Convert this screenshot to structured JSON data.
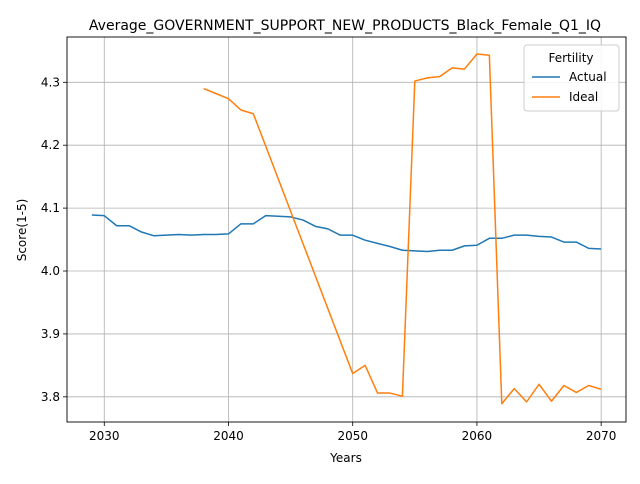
{
  "chart_data": {
    "type": "line",
    "title": "Average_GOVERNMENT_SUPPORT_NEW_PRODUCTS_Black_Female_Q1_IQ",
    "xlabel": "Years",
    "ylabel": "Score(1-5)",
    "xlim": [
      2027,
      2072
    ],
    "ylim": [
      3.76,
      4.372
    ],
    "x_ticks": [
      2030,
      2040,
      2050,
      2060,
      2070
    ],
    "y_ticks": [
      3.8,
      3.9,
      4.0,
      4.1,
      4.2,
      4.3
    ],
    "x_tick_labels": [
      "2030",
      "2040",
      "2050",
      "2060",
      "2070"
    ],
    "y_tick_labels": [
      "3.8",
      "3.9",
      "4.0",
      "4.1",
      "4.2",
      "4.3"
    ],
    "grid": true,
    "legend": {
      "title": "Fertility",
      "position": "top-right"
    },
    "series": [
      {
        "name": "Actual",
        "color": "#1f77b4",
        "points": [
          [
            2029,
            4.089
          ],
          [
            2030,
            4.088
          ],
          [
            2031,
            4.072
          ],
          [
            2032,
            4.072
          ],
          [
            2033,
            4.062
          ],
          [
            2034,
            4.056
          ],
          [
            2035,
            4.057
          ],
          [
            2036,
            4.058
          ],
          [
            2037,
            4.057
          ],
          [
            2038,
            4.058
          ],
          [
            2039,
            4.058
          ],
          [
            2040,
            4.059
          ],
          [
            2041,
            4.075
          ],
          [
            2042,
            4.075
          ],
          [
            2043,
            4.088
          ],
          [
            2044,
            4.087
          ],
          [
            2045,
            4.086
          ],
          [
            2046,
            4.081
          ],
          [
            2047,
            4.071
          ],
          [
            2048,
            4.067
          ],
          [
            2049,
            4.057
          ],
          [
            2050,
            4.057
          ],
          [
            2051,
            4.049
          ],
          [
            2052,
            4.044
          ],
          [
            2053,
            4.039
          ],
          [
            2054,
            4.033
          ],
          [
            2055,
            4.032
          ],
          [
            2056,
            4.031
          ],
          [
            2057,
            4.033
          ],
          [
            2058,
            4.033
          ],
          [
            2059,
            4.04
          ],
          [
            2060,
            4.041
          ],
          [
            2061,
            4.052
          ],
          [
            2062,
            4.052
          ],
          [
            2063,
            4.057
          ],
          [
            2064,
            4.057
          ],
          [
            2065,
            4.055
          ],
          [
            2066,
            4.054
          ],
          [
            2067,
            4.046
          ],
          [
            2068,
            4.046
          ],
          [
            2069,
            4.036
          ],
          [
            2070,
            4.035
          ]
        ]
      },
      {
        "name": "Ideal",
        "color": "#ff7f0e",
        "points": [
          [
            2038,
            4.29
          ],
          [
            2039,
            4.282
          ],
          [
            2040,
            4.274
          ],
          [
            2041,
            4.256
          ],
          [
            2042,
            4.25
          ],
          [
            2050,
            3.837
          ],
          [
            2051,
            3.85
          ],
          [
            2052,
            3.806
          ],
          [
            2053,
            3.806
          ],
          [
            2054,
            3.801
          ],
          [
            2055,
            4.302
          ],
          [
            2056,
            4.307
          ],
          [
            2057,
            4.309
          ],
          [
            2058,
            4.323
          ],
          [
            2059,
            4.321
          ],
          [
            2060,
            4.345
          ],
          [
            2061,
            4.343
          ],
          [
            2062,
            3.789
          ],
          [
            2063,
            3.813
          ],
          [
            2064,
            3.792
          ],
          [
            2065,
            3.82
          ],
          [
            2066,
            3.793
          ],
          [
            2067,
            3.818
          ],
          [
            2068,
            3.807
          ],
          [
            2069,
            3.818
          ],
          [
            2070,
            3.812
          ]
        ]
      }
    ]
  }
}
